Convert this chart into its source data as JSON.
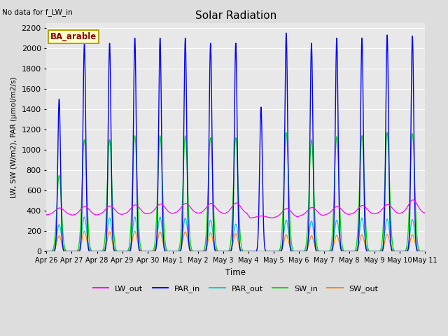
{
  "title": "Solar Radiation",
  "subtitle": "No data for f_LW_in",
  "xlabel": "Time",
  "ylabel": "LW, SW (W/m2), PAR (μmol/m2/s)",
  "legend_label": "BA_arable",
  "series": {
    "LW_out": {
      "color": "#ff00ff",
      "label": "LW_out"
    },
    "PAR_in": {
      "color": "#0000ff",
      "label": "PAR_in"
    },
    "PAR_out": {
      "color": "#00cccc",
      "label": "PAR_out"
    },
    "SW_in": {
      "color": "#00dd00",
      "label": "SW_in"
    },
    "SW_out": {
      "color": "#ff8800",
      "label": "SW_out"
    }
  },
  "ylim": [
    0,
    2250
  ],
  "figsize": [
    6.4,
    4.8
  ],
  "dpi": 100,
  "num_days": 15,
  "day_peaks": {
    "PAR_in": [
      1500,
      2050,
      2050,
      2100,
      2100,
      2100,
      2050,
      2050,
      1420,
      2150,
      2050,
      2100,
      2100,
      2130,
      2120
    ],
    "SW_in": [
      750,
      1100,
      1100,
      1140,
      1140,
      1140,
      1120,
      1120,
      0,
      1170,
      1100,
      1130,
      1140,
      1170,
      1160
    ],
    "PAR_out": [
      265,
      340,
      330,
      340,
      340,
      330,
      310,
      270,
      0,
      310,
      300,
      310,
      330,
      320,
      315
    ],
    "SW_out": [
      155,
      200,
      195,
      200,
      195,
      195,
      185,
      175,
      0,
      165,
      155,
      160,
      165,
      170,
      165
    ],
    "LW_out_base": [
      360,
      355,
      360,
      365,
      370,
      375,
      375,
      370,
      330,
      335,
      350,
      360,
      365,
      370,
      375
    ],
    "LW_out_peak": [
      430,
      445,
      450,
      460,
      470,
      475,
      475,
      480,
      350,
      425,
      435,
      445,
      455,
      465,
      510
    ]
  },
  "cloudy_day": 8,
  "cloudy_PAR_in_peak": 1420
}
